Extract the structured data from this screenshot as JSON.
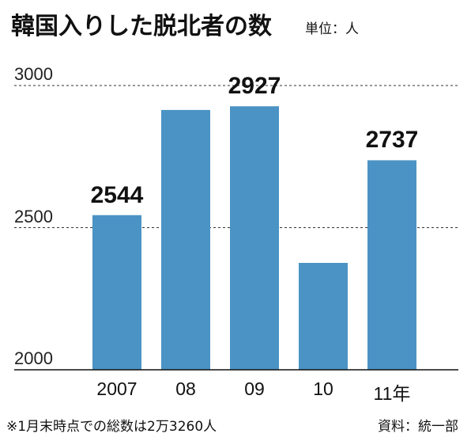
{
  "title": "韓国入りした脱北者の数",
  "unit": "単位：人",
  "footnote": "※1月末時点での総数は2万3260人",
  "source": "資料：統一部",
  "colors": {
    "bar": "#4b93c4",
    "grid": "#333333",
    "axis": "#111111"
  },
  "chart_data": {
    "type": "bar",
    "title": "韓国入りした脱北者の数",
    "xlabel": "",
    "ylabel": "",
    "categories": [
      "2007",
      "08",
      "09",
      "10",
      "11年"
    ],
    "values": [
      2544,
      2914,
      2927,
      2376,
      2737
    ],
    "data_labels": [
      "2544",
      "",
      "2927",
      "",
      "2737"
    ],
    "yticks": [
      "3000",
      "2500",
      "2000"
    ],
    "ylim": [
      2000,
      3000
    ],
    "grid": "dashed horizontal"
  }
}
